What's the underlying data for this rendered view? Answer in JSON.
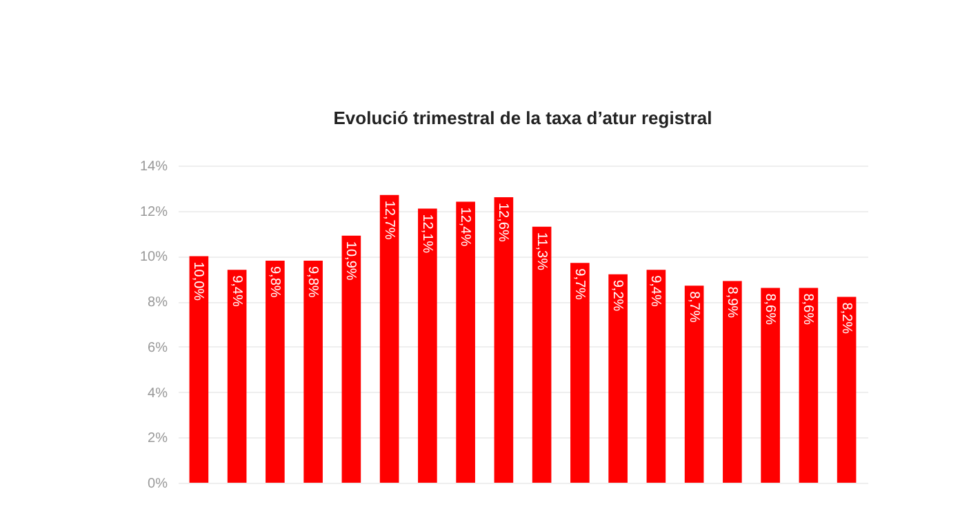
{
  "chart_data": {
    "type": "bar",
    "title": "Evolució trimestral de la taxa d’atur registral",
    "categories": [
      null,
      null,
      null,
      null,
      null,
      null,
      null,
      null,
      null,
      null,
      null,
      null,
      null,
      null,
      null,
      null,
      null,
      null
    ],
    "values": [
      10.0,
      9.4,
      9.8,
      9.8,
      10.9,
      12.7,
      12.1,
      12.4,
      12.6,
      11.3,
      9.7,
      9.2,
      9.4,
      8.7,
      8.9,
      8.6,
      8.6,
      8.2
    ],
    "value_labels": [
      "10,0%",
      "9,4%",
      "9,8%",
      "9,8%",
      "10,9%",
      "12,7%",
      "12,1%",
      "12,4%",
      "12,6%",
      "11,3%",
      "9,7%",
      "9,2%",
      "9,4%",
      "8,7%",
      "8,9%",
      "8,6%",
      "8,6%",
      "8,2%"
    ],
    "color": "#ff0000",
    "ylim": [
      0,
      14
    ],
    "yticks": [
      {
        "value": 0,
        "label": "0%"
      },
      {
        "value": 2,
        "label": "2%"
      },
      {
        "value": 4,
        "label": "4%"
      },
      {
        "value": 6,
        "label": "6%"
      },
      {
        "value": 8,
        "label": "8%"
      },
      {
        "value": 10,
        "label": "10%"
      },
      {
        "value": 12,
        "label": "12%"
      },
      {
        "value": 14,
        "label": "14%"
      }
    ],
    "grid": "y",
    "tick_labels": "y"
  }
}
